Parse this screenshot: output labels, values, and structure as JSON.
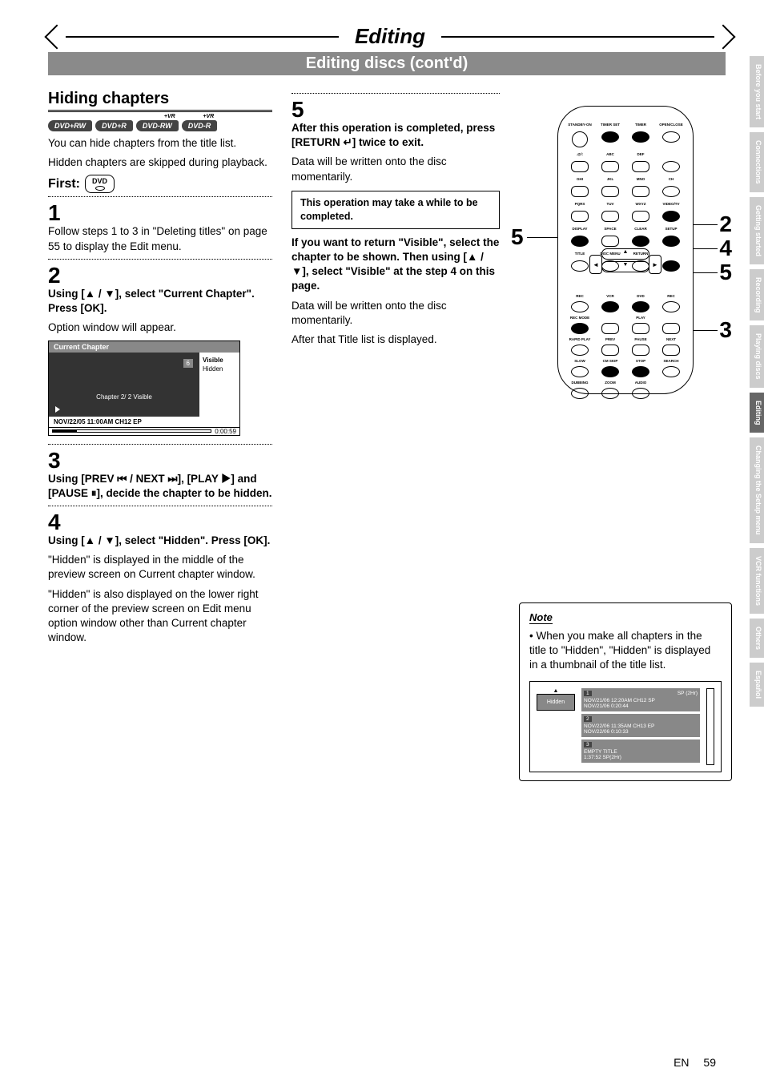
{
  "page": {
    "title": "Editing",
    "subtitle": "Editing discs (cont'd)",
    "footer_lang": "EN",
    "footer_page": "59"
  },
  "col1": {
    "heading": "Hiding chapters",
    "badges": [
      "DVD+RW",
      "DVD+R",
      "DVD-RW",
      "DVD-R"
    ],
    "vr_sup": "+VR",
    "intro1": "You can hide chapters from the title list.",
    "intro2": "Hidden chapters are skipped during playback.",
    "first_label": "First:",
    "dvd_btn": "DVD",
    "step1_num": "1",
    "step1_txt": "Follow steps 1 to 3 in \"Deleting titles\" on page 55 to display the Edit menu.",
    "step2_num": "2",
    "step2_head": "Using [▲ / ▼], select \"Current Chapter\". Press [OK].",
    "step2_txt": "Option window will appear.",
    "optwin": {
      "title": "Current Chapter",
      "num": "6",
      "chapter": "Chapter    2/ 2    Visible",
      "opt1": "Visible",
      "opt2": "Hidden",
      "footer": "NOV/22/05 11:00AM CH12 EP",
      "time": "0:00:59"
    },
    "step3_num": "3",
    "step3_head": "Using [PREV ⏮ / NEXT ⏭], [PLAY ▶] and [PAUSE ⏸], decide the chapter to be hidden.",
    "step4_num": "4",
    "step4_head": "Using [▲ / ▼], select \"Hidden\". Press [OK].",
    "step4_p1": "\"Hidden\" is displayed in the middle of the preview screen on Current chapter window.",
    "step4_p2": "\"Hidden\" is also displayed on the lower right corner of the preview screen on Edit menu option window other than Current chapter window."
  },
  "col2": {
    "step5_num": "5",
    "step5_head": "After this operation is completed, press [RETURN ↵] twice to exit.",
    "step5_p1": "Data will be written onto the disc momentarily.",
    "box": "This operation may take a while to be completed.",
    "p2": "If you want to return \"Visible\", select the chapter to be shown. Then using [▲ / ▼], select \"Visible\" at the step 4 on this page.",
    "p3": "Data will be written onto the disc momentarily.",
    "p4": "After that Title list is displayed."
  },
  "remote": {
    "row_labels": [
      [
        "STANDBY-ON",
        "TIMER SET",
        "TIMER",
        "OPEN/CLOSE"
      ],
      [
        ".@/:",
        "ABC",
        "DEF",
        ""
      ],
      [
        "",
        "1",
        "2",
        "3",
        "",
        "CH"
      ],
      [
        "GHI",
        "JKL",
        "MNO",
        ""
      ],
      [
        "",
        "4",
        "5",
        "6",
        ""
      ],
      [
        "PQRS",
        "TUV",
        "WXYZ",
        "VIDEO/TV"
      ],
      [
        "",
        "7",
        "8",
        "9",
        ""
      ],
      [
        "DISPLAY",
        "SPACE",
        "CLEAR",
        "SETUP"
      ],
      [
        "",
        "0",
        "",
        ""
      ],
      [
        "TITLE",
        "DISC MENU",
        "RETURN",
        ""
      ],
      [
        "REC",
        "VCR",
        "DVD",
        "REC"
      ],
      [
        "REC MODE",
        "",
        "PLAY",
        ""
      ],
      [
        "RAPID PLAY",
        "PREV",
        "PAUSE",
        "NEXT"
      ],
      [
        "SLOW",
        "CM SKIP",
        "STOP",
        "SEARCH"
      ],
      [
        "DUBBING",
        "ZOOM",
        "AUDIO",
        ""
      ]
    ],
    "callouts": {
      "c5": "5",
      "c2": "2",
      "c4": "4",
      "c5b": "5",
      "c3": "3"
    }
  },
  "note": {
    "title": "Note",
    "bullet": "• When you make all chapters in the title to \"Hidden\", \"Hidden\" is displayed in a thumbnail of the title list.",
    "thumb": {
      "hidden": "Hidden",
      "sp": "SP (2Hr)",
      "r1n": "1",
      "r1a": "NOV/21/06  12:20AM CH12  SP",
      "r1b": "NOV/21/06   0:20:44",
      "r2n": "2",
      "r2a": "NOV/22/06  11:35AM CH13  EP",
      "r2b": "NOV/22/06   0:10:33",
      "r3n": "3",
      "r3a": "EMPTY TITLE",
      "r3b": "1:37:52  SP(2Hr)"
    }
  },
  "sidetabs": {
    "tabs": [
      "Before you start",
      "Connections",
      "Getting started",
      "Recording",
      "Playing discs",
      "Editing",
      "Changing the Setup menu",
      "VCR functions",
      "Others",
      "Español"
    ],
    "active_index": 5
  }
}
